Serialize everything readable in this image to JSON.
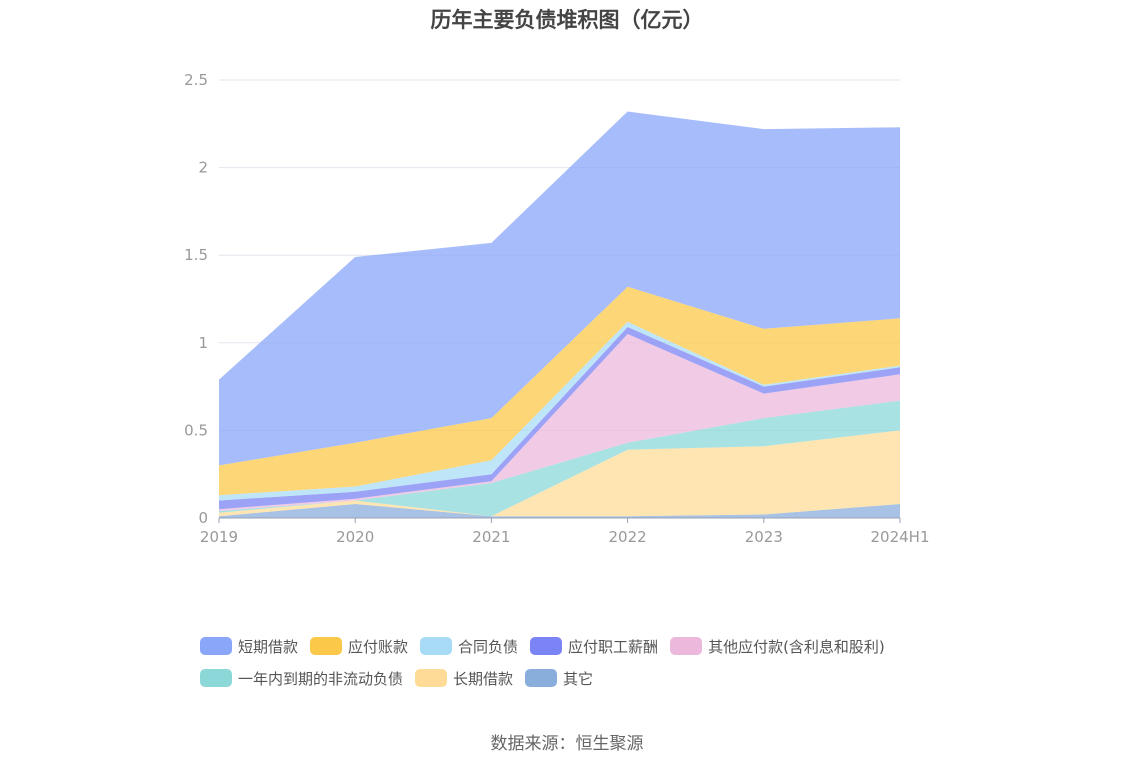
{
  "chart_data": {
    "type": "area",
    "stacked": true,
    "title": "历年主要负债堆积图（亿元）",
    "x": [
      "2019",
      "2020",
      "2021",
      "2022",
      "2023",
      "2024H1"
    ],
    "ylim": [
      0,
      2.5
    ],
    "yticks": [
      "0",
      "0.5",
      "1",
      "1.5",
      "2",
      "2.5"
    ],
    "grid": true,
    "legend_position": "bottom",
    "series": [
      {
        "name": "其它",
        "color": "#8aaedc",
        "values": [
          0.01,
          0.08,
          0.01,
          0.01,
          0.02,
          0.08
        ]
      },
      {
        "name": "长期借款",
        "color": "#fedc98",
        "values": [
          0.02,
          0.02,
          0.0,
          0.38,
          0.39,
          0.42
        ]
      },
      {
        "name": "一年内到期的非流动负债",
        "color": "#8cd8d8",
        "values": [
          0.01,
          0.0,
          0.19,
          0.04,
          0.16,
          0.17
        ]
      },
      {
        "name": "其他应付款(含利息和股利)",
        "color": "#ecb8dc",
        "values": [
          0.01,
          0.01,
          0.01,
          0.62,
          0.14,
          0.15
        ]
      },
      {
        "name": "应付职工薪酬",
        "color": "#7b84f4",
        "values": [
          0.05,
          0.04,
          0.04,
          0.04,
          0.04,
          0.04
        ]
      },
      {
        "name": "合同负债",
        "color": "#a8dcf6",
        "values": [
          0.03,
          0.03,
          0.08,
          0.03,
          0.01,
          0.01
        ]
      },
      {
        "name": "应付账款",
        "color": "#fcc84a",
        "values": [
          0.17,
          0.25,
          0.24,
          0.2,
          0.32,
          0.27
        ]
      },
      {
        "name": "短期借款",
        "color": "#8aa6f8",
        "values": [
          0.49,
          1.06,
          1.0,
          1.0,
          1.14,
          1.09
        ]
      }
    ],
    "legend_rows": [
      [
        "短期借款",
        "应付账款",
        "合同负债",
        "应付职工薪酬",
        "其他应付款(含利息和股利)"
      ],
      [
        "一年内到期的非流动负债",
        "长期借款",
        "其它"
      ]
    ]
  },
  "source": "数据来源：恒生聚源"
}
